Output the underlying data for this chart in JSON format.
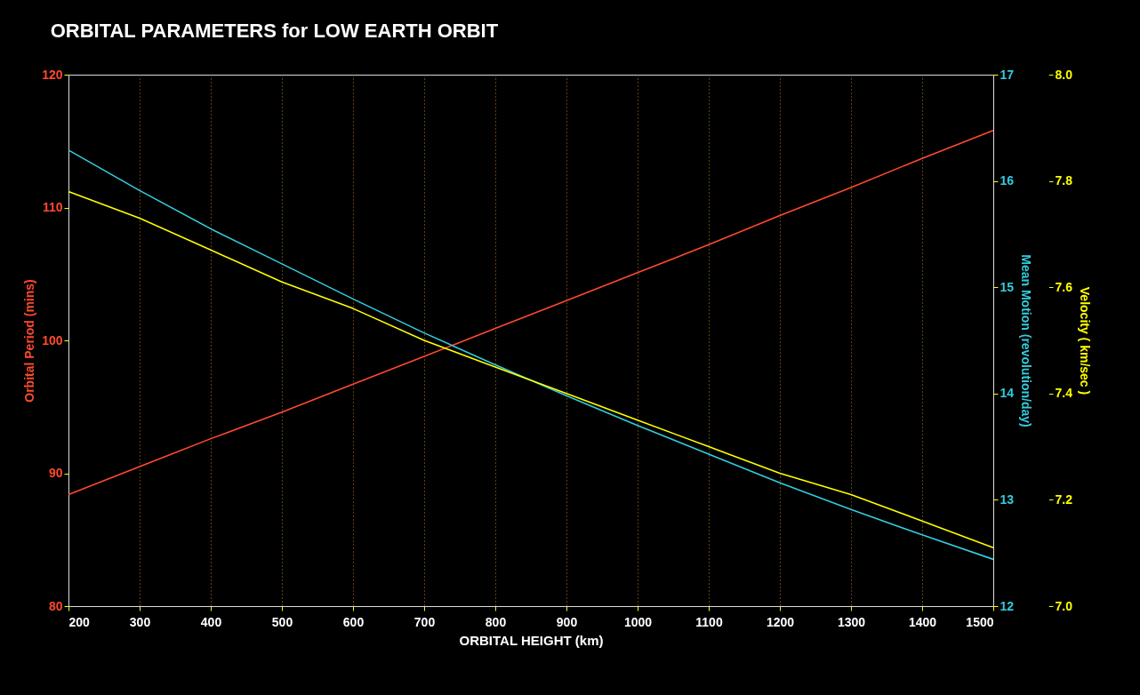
{
  "chart_data": {
    "type": "line",
    "title": "ORBITAL PARAMETERS for LOW EARTH ORBIT",
    "xlabel": "ORBITAL HEIGHT (km)",
    "ylabel": "Orbital Period (mins)",
    "y2label": "Mean Motion (revolution/day)",
    "y3label": "Velocity ( km/sec )",
    "x": [
      200,
      300,
      400,
      500,
      600,
      700,
      800,
      900,
      1000,
      1100,
      1200,
      1300,
      1400,
      1500
    ],
    "series": [
      {
        "color": "#ff4a2e",
        "axis": "y",
        "values": [
          88.4,
          90.5,
          92.6,
          94.6,
          96.7,
          98.8,
          100.9,
          103.0,
          105.1,
          107.2,
          109.4,
          111.5,
          113.7,
          115.8
        ]
      },
      {
        "color": "#33ccdd",
        "axis": "y2",
        "values": [
          16.29,
          15.91,
          15.55,
          15.22,
          14.89,
          14.57,
          14.27,
          13.98,
          13.7,
          13.43,
          13.16,
          12.91,
          12.67,
          12.44
        ]
      },
      {
        "color": "#ffff00",
        "axis": "y3",
        "values": [
          7.78,
          7.73,
          7.67,
          7.61,
          7.56,
          7.5,
          7.45,
          7.4,
          7.35,
          7.3,
          7.25,
          7.21,
          7.16,
          7.11
        ]
      }
    ],
    "xlim": [
      200,
      1500
    ],
    "xticks": [
      200,
      300,
      400,
      500,
      600,
      700,
      800,
      900,
      1000,
      1100,
      1200,
      1300,
      1400,
      1500
    ],
    "ylim": [
      80,
      120
    ],
    "yticks": [
      80,
      90,
      100,
      110,
      120
    ],
    "y2lim": [
      12,
      17
    ],
    "y2ticks": [
      12,
      13,
      14,
      15,
      16,
      17
    ],
    "y3lim": [
      7.0,
      8.0
    ],
    "y3ticks": [
      {
        "value": 7.0,
        "label": "7.0"
      },
      7.2,
      7.4,
      7.6,
      7.8,
      {
        "value": 8.0,
        "label": "8.0"
      }
    ],
    "grid": "x",
    "line_style": "solid",
    "marker": "none"
  }
}
